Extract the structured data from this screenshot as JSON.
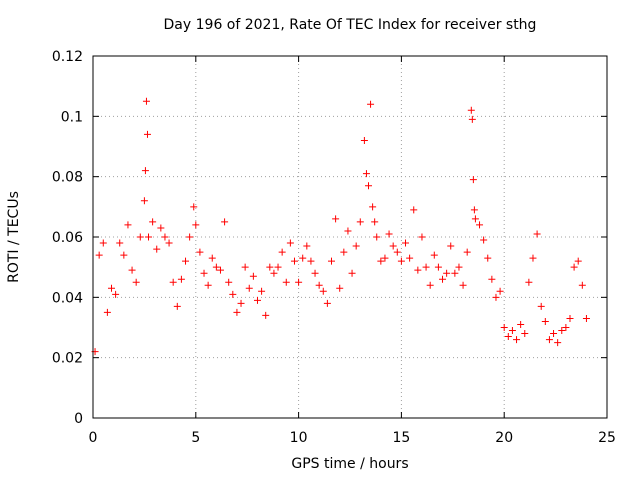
{
  "chart_data": {
    "type": "scatter",
    "title": "Day 196 of 2021, Rate Of TEC Index for receiver sthg",
    "xlabel": "GPS time / hours",
    "ylabel": "ROTI / TECUs",
    "xlim": [
      0,
      25
    ],
    "ylim": [
      0,
      0.12
    ],
    "x_ticks": [
      0,
      5,
      10,
      15,
      20,
      25
    ],
    "x_tick_labels": [
      "0",
      "5",
      "10",
      "15",
      "20",
      "25"
    ],
    "y_ticks": [
      0,
      0.02,
      0.04,
      0.06,
      0.08,
      0.1,
      0.12
    ],
    "y_tick_labels": [
      "0",
      "0.02",
      "0.04",
      "0.06",
      "0.08",
      "0.1",
      "0.12"
    ],
    "grid": true,
    "marker": "+",
    "color": "#ff0000",
    "series": [
      {
        "name": "ROTI",
        "x": [
          0.1,
          0.3,
          0.5,
          0.7,
          0.9,
          1.1,
          1.3,
          1.5,
          1.7,
          1.9,
          2.1,
          2.3,
          2.5,
          2.55,
          2.6,
          2.65,
          2.7,
          2.9,
          3.1,
          3.3,
          3.5,
          3.7,
          3.9,
          4.1,
          4.3,
          4.5,
          4.7,
          4.9,
          5.0,
          5.2,
          5.4,
          5.6,
          5.8,
          6.0,
          6.2,
          6.4,
          6.6,
          6.8,
          7.0,
          7.2,
          7.4,
          7.6,
          7.8,
          8.0,
          8.2,
          8.4,
          8.6,
          8.8,
          9.0,
          9.2,
          9.4,
          9.6,
          9.8,
          10.0,
          10.2,
          10.4,
          10.6,
          10.8,
          11.0,
          11.2,
          11.4,
          11.6,
          11.8,
          12.0,
          12.2,
          12.4,
          12.6,
          12.8,
          13.0,
          13.2,
          13.3,
          13.4,
          13.5,
          13.6,
          13.7,
          13.8,
          14.0,
          14.2,
          14.4,
          14.6,
          14.8,
          15.0,
          15.2,
          15.4,
          15.6,
          15.8,
          16.0,
          16.2,
          16.4,
          16.6,
          16.8,
          17.0,
          17.2,
          17.4,
          17.6,
          17.8,
          18.0,
          18.2,
          18.4,
          18.45,
          18.5,
          18.55,
          18.6,
          18.8,
          19.0,
          19.2,
          19.4,
          19.6,
          19.8,
          20.0,
          20.2,
          20.4,
          20.6,
          20.8,
          21.0,
          21.2,
          21.4,
          21.6,
          21.8,
          22.0,
          22.2,
          22.4,
          22.6,
          22.8,
          23.0,
          23.2,
          23.4,
          23.6,
          23.8,
          24.0
        ],
        "y": [
          0.022,
          0.054,
          0.058,
          0.035,
          0.043,
          0.041,
          0.058,
          0.054,
          0.064,
          0.049,
          0.045,
          0.06,
          0.072,
          0.082,
          0.105,
          0.094,
          0.06,
          0.065,
          0.056,
          0.063,
          0.06,
          0.058,
          0.045,
          0.037,
          0.046,
          0.052,
          0.06,
          0.07,
          0.064,
          0.055,
          0.048,
          0.044,
          0.053,
          0.05,
          0.049,
          0.065,
          0.045,
          0.041,
          0.035,
          0.038,
          0.05,
          0.043,
          0.047,
          0.039,
          0.042,
          0.034,
          0.05,
          0.048,
          0.05,
          0.055,
          0.045,
          0.058,
          0.052,
          0.045,
          0.053,
          0.057,
          0.052,
          0.048,
          0.044,
          0.042,
          0.038,
          0.052,
          0.066,
          0.043,
          0.055,
          0.062,
          0.048,
          0.057,
          0.065,
          0.092,
          0.081,
          0.077,
          0.104,
          0.07,
          0.065,
          0.06,
          0.052,
          0.053,
          0.061,
          0.057,
          0.055,
          0.052,
          0.058,
          0.053,
          0.069,
          0.049,
          0.06,
          0.05,
          0.044,
          0.054,
          0.05,
          0.046,
          0.048,
          0.057,
          0.048,
          0.05,
          0.044,
          0.055,
          0.102,
          0.099,
          0.079,
          0.069,
          0.066,
          0.064,
          0.059,
          0.053,
          0.046,
          0.04,
          0.042,
          0.03,
          0.027,
          0.029,
          0.026,
          0.031,
          0.028,
          0.045,
          0.053,
          0.061,
          0.037,
          0.032,
          0.026,
          0.028,
          0.025,
          0.029,
          0.03,
          0.033,
          0.05,
          0.052,
          0.044,
          0.033
        ]
      }
    ]
  }
}
